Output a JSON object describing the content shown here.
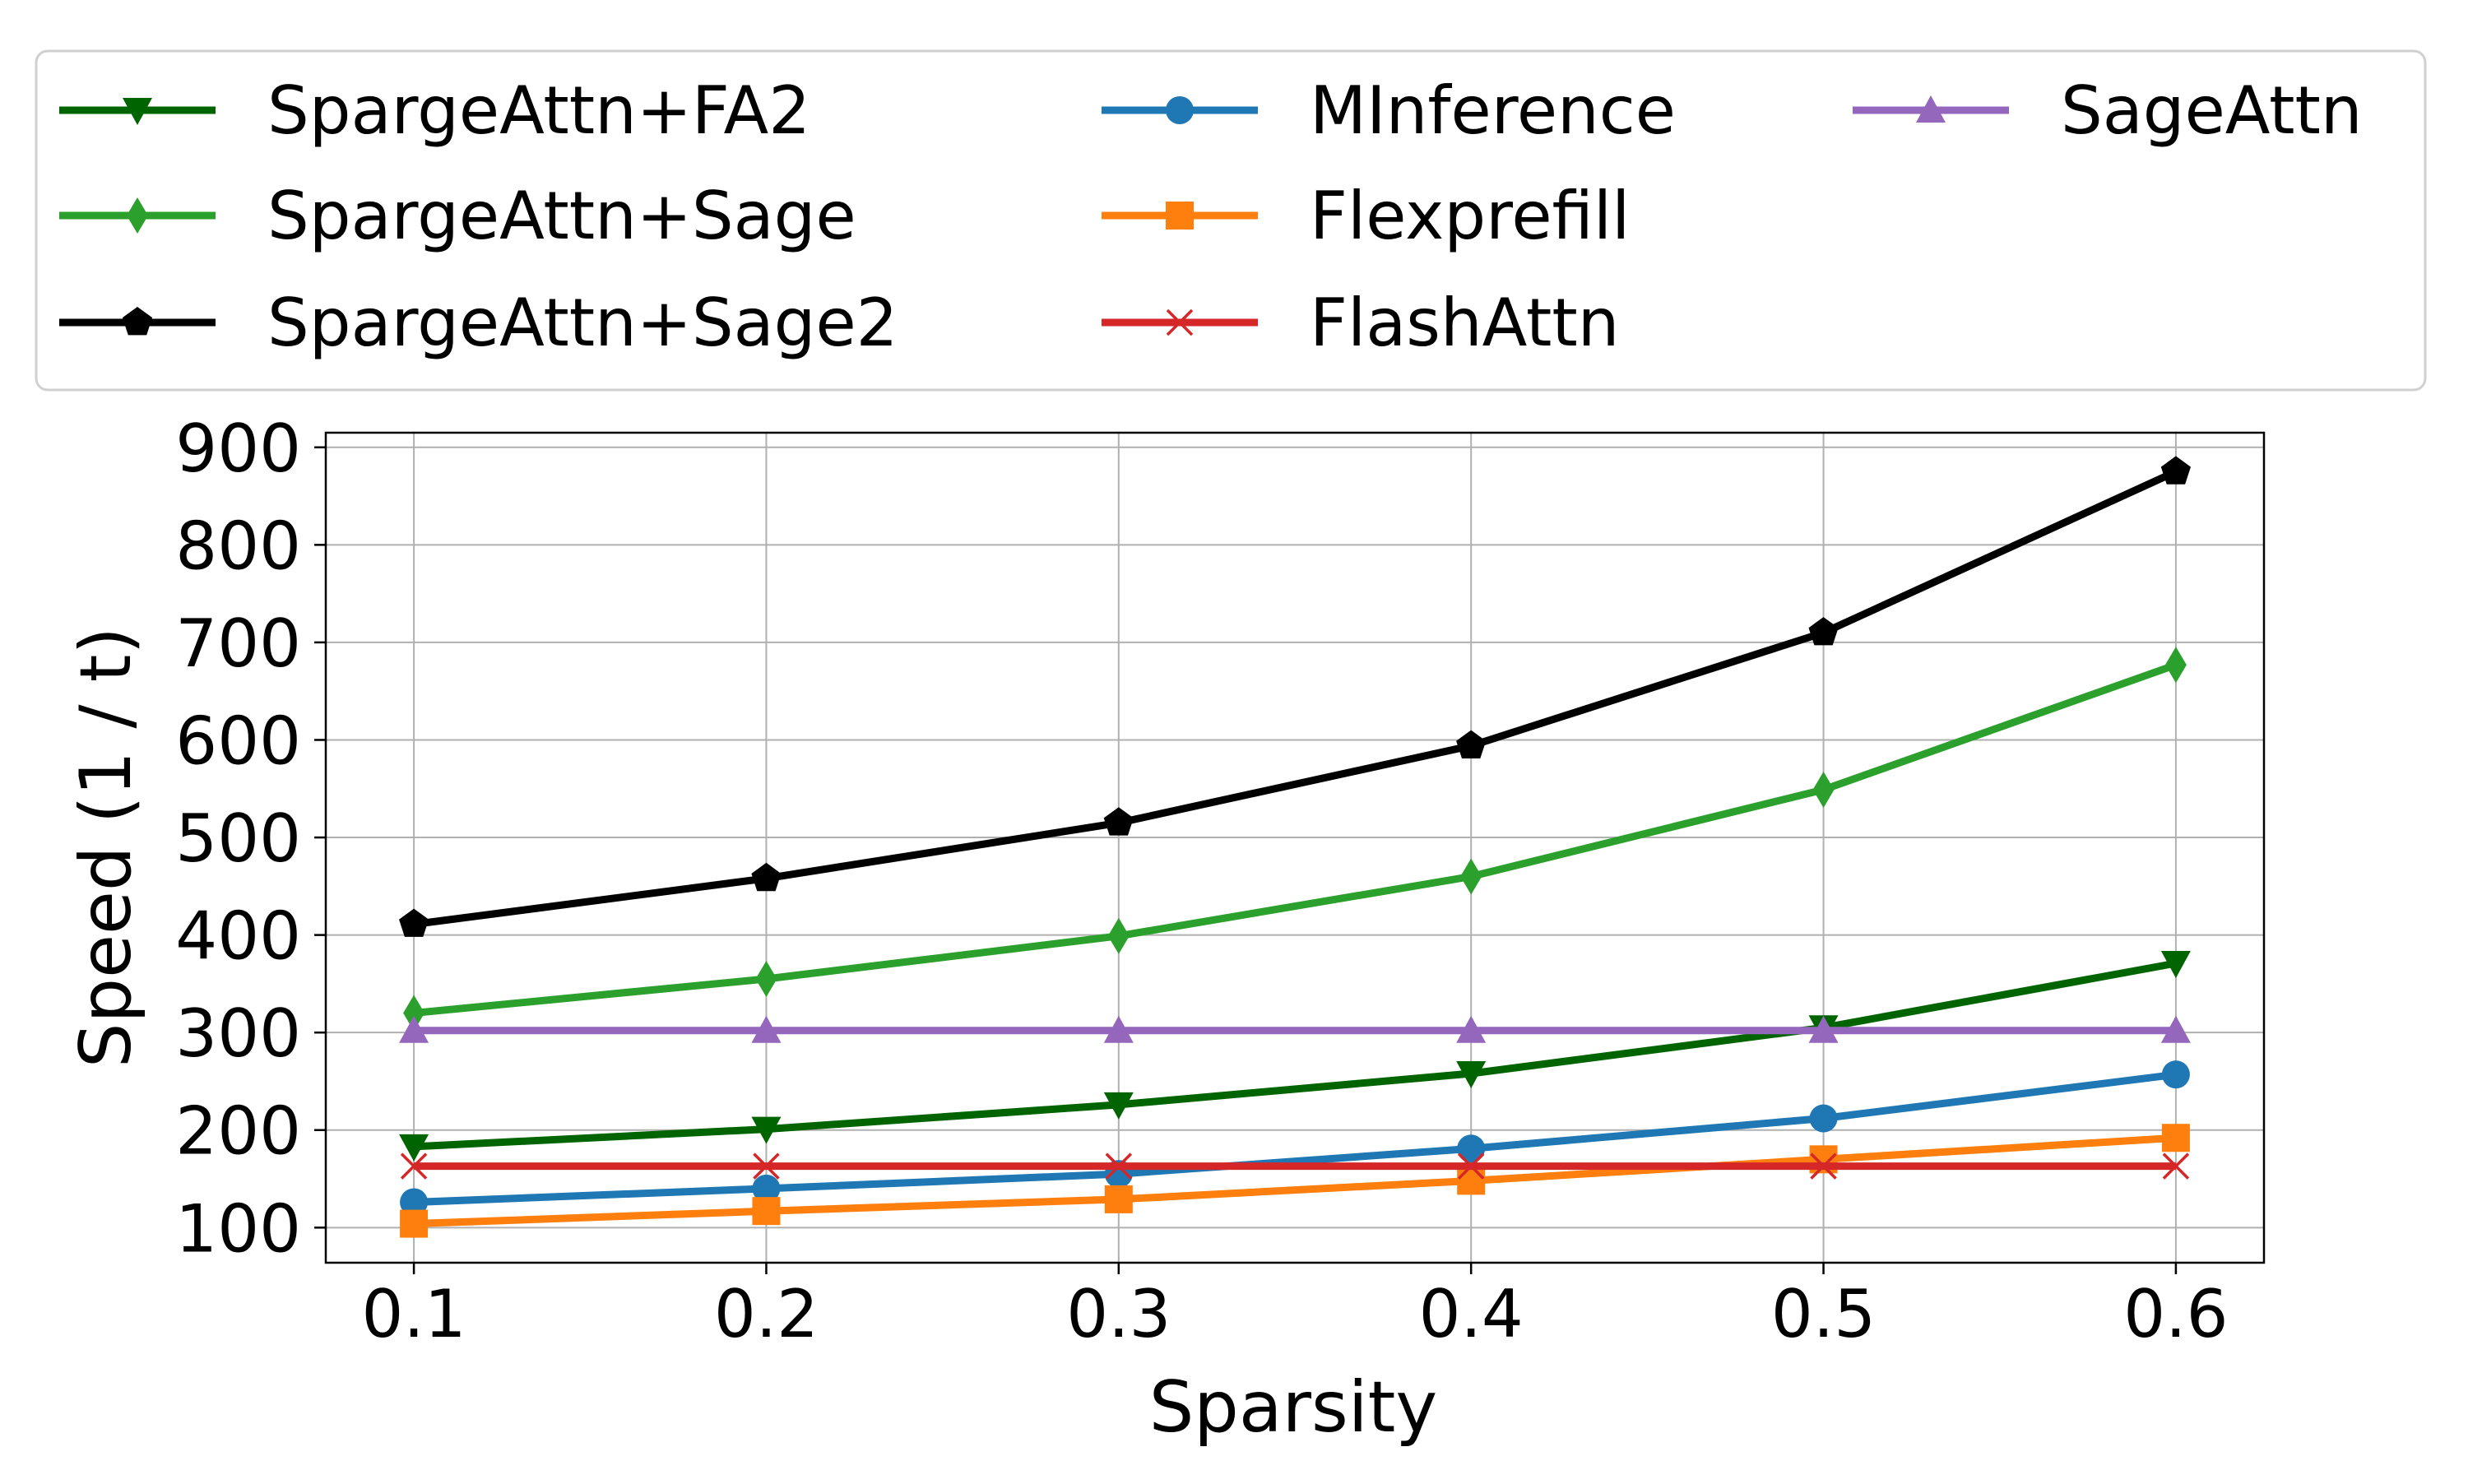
{
  "chart_data": {
    "type": "line",
    "xlabel": "Sparsity",
    "ylabel": "Speed (1 / t)",
    "x": [
      0.1,
      0.2,
      0.3,
      0.4,
      0.5,
      0.6
    ],
    "x_tick_labels": [
      "0.1",
      "0.2",
      "0.3",
      "0.4",
      "0.5",
      "0.6"
    ],
    "xlim": [
      0.075,
      0.625
    ],
    "ylim": [
      64,
      915
    ],
    "y_ticks": [
      100,
      200,
      300,
      400,
      500,
      600,
      700,
      800,
      900
    ],
    "y_tick_labels": [
      "100",
      "200",
      "300",
      "400",
      "500",
      "600",
      "700",
      "800",
      "900"
    ],
    "grid": true,
    "legend_position": "top",
    "series": [
      {
        "name": "SpargeAttn+FA2",
        "color": "#006400",
        "marker": "triangle-down",
        "values": [
          183,
          201,
          226,
          258,
          305,
          371
        ]
      },
      {
        "name": "SpargeAttn+Sage",
        "color": "#2ca02c",
        "marker": "diamond",
        "values": [
          320,
          355,
          399,
          460,
          549,
          677
        ]
      },
      {
        "name": "SpargeAttn+Sage2",
        "color": "#000000",
        "marker": "pentagon",
        "values": [
          411,
          458,
          515,
          594,
          710,
          875
        ]
      },
      {
        "name": "MInference",
        "color": "#1f77b4",
        "marker": "circle",
        "values": [
          126,
          140,
          155,
          181,
          212,
          257
        ]
      },
      {
        "name": "Flexprefill",
        "color": "#ff7f0e",
        "marker": "square",
        "values": [
          104,
          117,
          129,
          148,
          170,
          192
        ]
      },
      {
        "name": "FlashAttn",
        "color": "#d62728",
        "marker": "x",
        "values": [
          163,
          163,
          163,
          163,
          163,
          163
        ]
      },
      {
        "name": "SageAttn",
        "color": "#9467bd",
        "marker": "triangle-up",
        "values": [
          302,
          302,
          302,
          302,
          302,
          302
        ]
      }
    ]
  }
}
